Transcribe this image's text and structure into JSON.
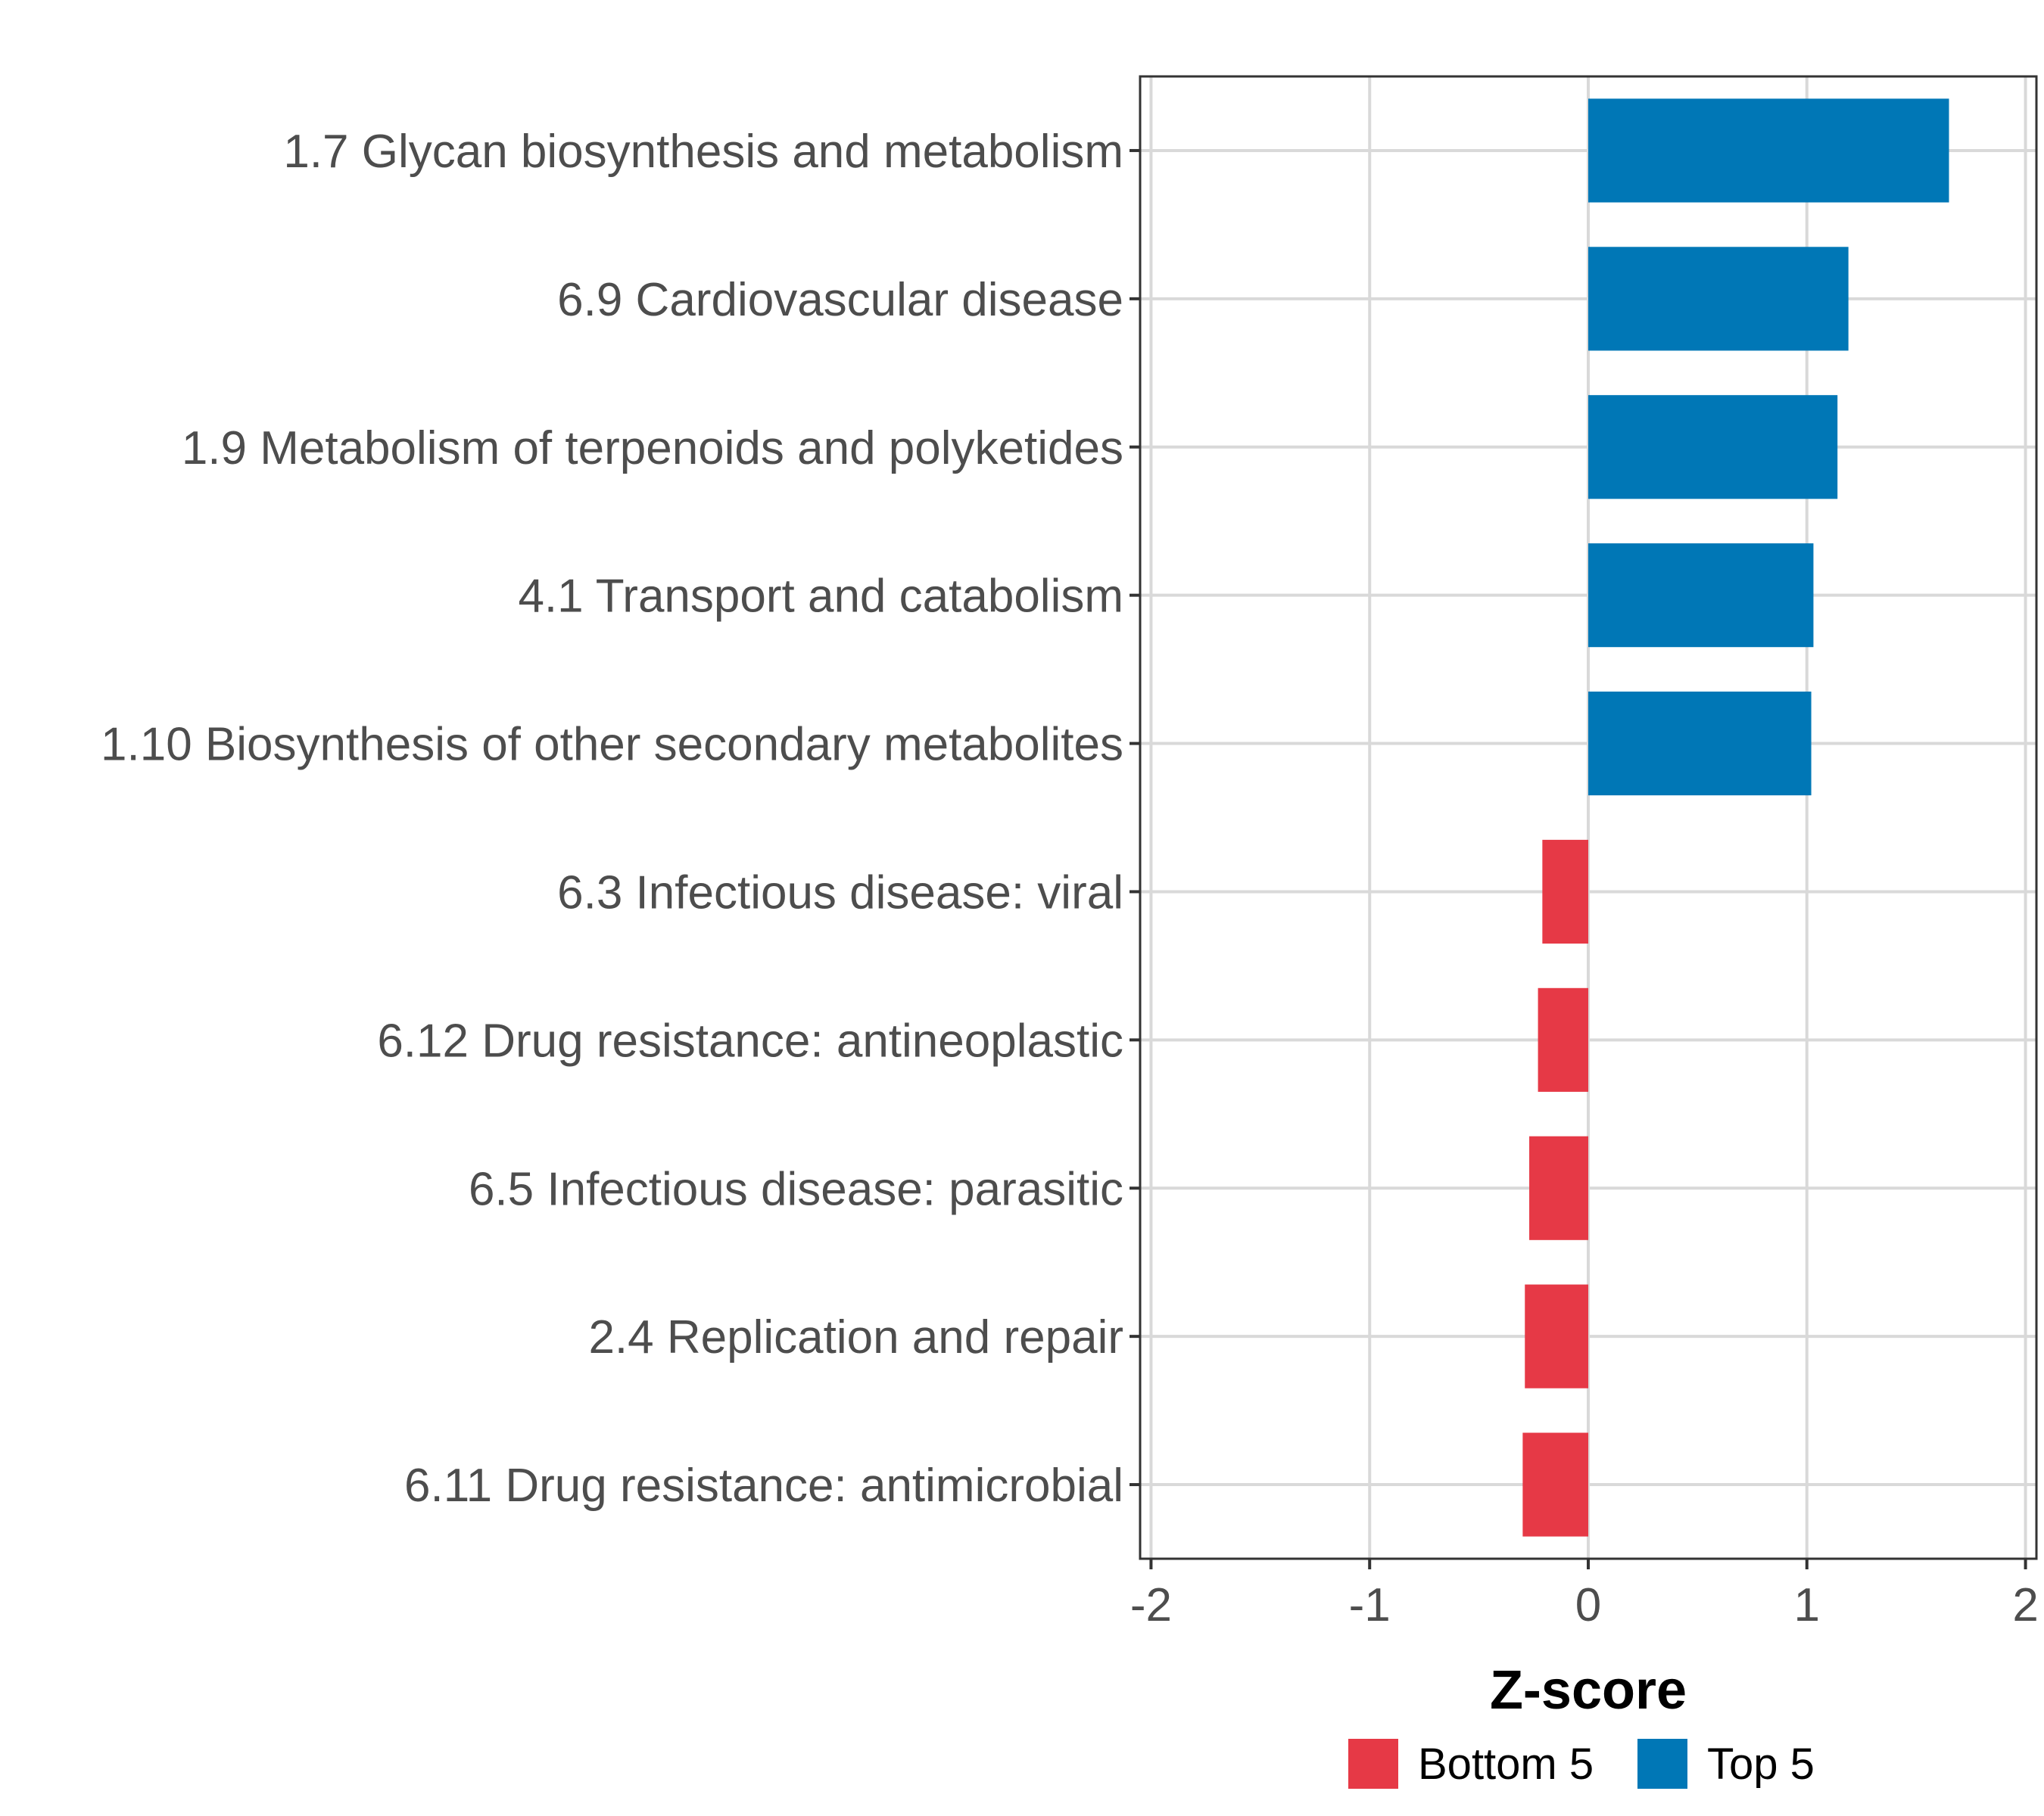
{
  "chart_data": {
    "type": "bar",
    "orientation": "horizontal",
    "title": "",
    "xlabel": "Z-score",
    "ylabel": "",
    "xlim": [
      -2.05,
      2.05
    ],
    "xticks": [
      -2,
      -1,
      0,
      1,
      2
    ],
    "grid": true,
    "legend_position": "bottom",
    "categories": [
      "1.7 Glycan biosynthesis and metabolism",
      "6.9 Cardiovascular disease",
      "1.9 Metabolism of terpenoids and polyketides",
      "4.1 Transport and catabolism",
      "1.10 Biosynthesis of other secondary metabolites",
      "6.3 Infectious disease: viral",
      "6.12 Drug resistance: antineoplastic",
      "6.5 Infectious disease: parasitic",
      "2.4 Replication and repair",
      "6.11 Drug resistance: antimicrobial"
    ],
    "values": [
      1.65,
      1.19,
      1.14,
      1.03,
      1.02,
      -0.21,
      -0.23,
      -0.27,
      -0.29,
      -0.3
    ],
    "groups": [
      "Top 5",
      "Top 5",
      "Top 5",
      "Top 5",
      "Top 5",
      "Bottom 5",
      "Bottom 5",
      "Bottom 5",
      "Bottom 5",
      "Bottom 5"
    ],
    "legend": [
      {
        "name": "Bottom 5",
        "color": "#e63946"
      },
      {
        "name": "Top 5",
        "color": "#0077b6"
      }
    ]
  }
}
